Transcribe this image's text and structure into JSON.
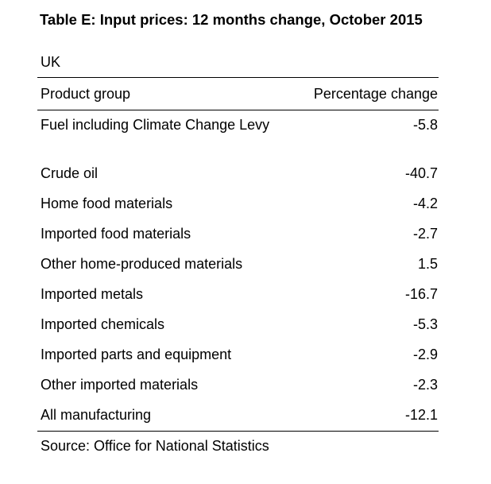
{
  "table": {
    "title": "Table E: Input prices: 12 months change, October 2015",
    "region": "UK",
    "columns": [
      "Product group",
      "Percentage change"
    ],
    "rows": [
      {
        "group": "Fuel including Climate Change Levy",
        "change": "-5.8"
      },
      {
        "group": "Crude oil",
        "change": "-40.7"
      },
      {
        "group": "Home food materials",
        "change": "-4.2"
      },
      {
        "group": "Imported food materials",
        "change": "-2.7"
      },
      {
        "group": "Other home-produced materials",
        "change": "1.5"
      },
      {
        "group": "Imported metals",
        "change": "-16.7"
      },
      {
        "group": "Imported chemicals",
        "change": "-5.3"
      },
      {
        "group": "Imported parts and equipment",
        "change": "-2.9"
      },
      {
        "group": "Other imported materials",
        "change": "-2.3"
      },
      {
        "group": "All manufacturing",
        "change": "-12.1"
      }
    ],
    "source": "Source: Office for National Statistics"
  }
}
